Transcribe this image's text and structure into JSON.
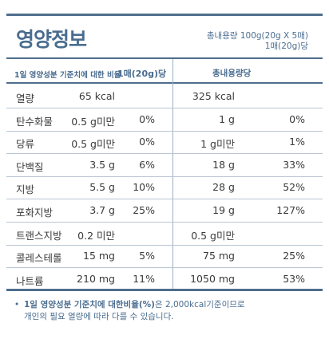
{
  "title": "영양정보",
  "total_line1": "총내용량 100g(20g X 5매)",
  "total_line2": "1매(20g)당",
  "header": {
    "left_label": "1일 영양성분 기준치에 대한 비율",
    "per_unit": "1매(20g)당",
    "total_label": "총내용량당"
  },
  "rows": [
    {
      "name": "열량",
      "amount": "65 kcal",
      "pct": "",
      "total_amount": "325 kcal",
      "total_pct": ""
    },
    {
      "name": "탄수화물",
      "amount": "0.5 g미만",
      "pct": "0%",
      "total_amount": "1 g",
      "total_pct": "0%"
    },
    {
      "name": "당류",
      "amount": "0.5 g미만",
      "pct": "0%",
      "total_amount": "1 g미만",
      "total_pct": "1%"
    },
    {
      "name": "단백질",
      "amount": "3.5 g",
      "pct": "6%",
      "total_amount": "18 g",
      "total_pct": "33%"
    },
    {
      "name": "지방",
      "amount": "5.5 g",
      "pct": "10%",
      "total_amount": "28 g",
      "total_pct": "52%"
    },
    {
      "name": "포화지방",
      "amount": "3.7 g",
      "pct": "25%",
      "total_amount": "19 g",
      "total_pct": "127%"
    },
    {
      "name": "트랜스지방",
      "amount": "0.2 미만",
      "pct": "",
      "total_amount": "0.5 g미만",
      "total_pct": ""
    },
    {
      "name": "콜레스테롤",
      "amount": "15 mg",
      "pct": "5%",
      "total_amount": "75 mg",
      "total_pct": "25%"
    },
    {
      "name": "나트륨",
      "amount": "210 mg",
      "pct": "11%",
      "total_amount": "1050 mg",
      "total_pct": "53%"
    }
  ],
  "footnote": {
    "bullet": "•",
    "bold": "1일 영양성분 기준치에 대한비율(%)",
    "rest": "은 2,000kcal기준이므로",
    "line2": "개인의 필요 열량에 따라 다를 수 있습니다."
  }
}
